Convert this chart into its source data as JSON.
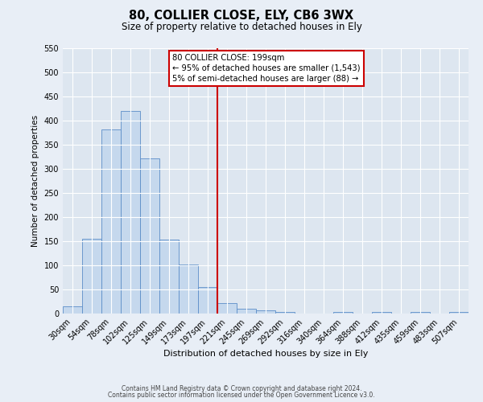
{
  "title": "80, COLLIER CLOSE, ELY, CB6 3WX",
  "subtitle": "Size of property relative to detached houses in Ely",
  "xlabel": "Distribution of detached houses by size in Ely",
  "ylabel": "Number of detached properties",
  "bin_labels": [
    "30sqm",
    "54sqm",
    "78sqm",
    "102sqm",
    "125sqm",
    "149sqm",
    "173sqm",
    "197sqm",
    "221sqm",
    "245sqm",
    "269sqm",
    "292sqm",
    "316sqm",
    "340sqm",
    "364sqm",
    "388sqm",
    "412sqm",
    "435sqm",
    "459sqm",
    "483sqm",
    "507sqm"
  ],
  "bar_values": [
    15,
    155,
    382,
    420,
    322,
    153,
    101,
    55,
    22,
    10,
    6,
    4,
    0,
    0,
    4,
    0,
    4,
    0,
    4,
    0,
    4
  ],
  "bar_color": "#c5d8ed",
  "bar_edge_color": "#5b8dc8",
  "background_color": "#dde6f0",
  "fig_background_color": "#e8eef6",
  "grid_color": "#ffffff",
  "vline_color": "#cc0000",
  "ylim": [
    0,
    550
  ],
  "yticks": [
    0,
    50,
    100,
    150,
    200,
    250,
    300,
    350,
    400,
    450,
    500,
    550
  ],
  "annotation_title": "80 COLLIER CLOSE: 199sqm",
  "annotation_line1": "← 95% of detached houses are smaller (1,543)",
  "annotation_line2": "5% of semi-detached houses are larger (88) →",
  "annotation_box_color": "#ffffff",
  "annotation_box_edge": "#cc0000",
  "footer1": "Contains HM Land Registry data © Crown copyright and database right 2024.",
  "footer2": "Contains public sector information licensed under the Open Government Licence v3.0."
}
